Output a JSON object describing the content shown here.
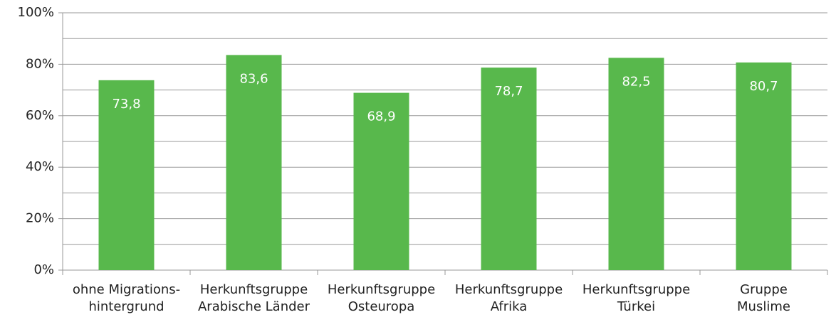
{
  "chart_data": {
    "type": "bar",
    "categories": [
      "ohne Migrations-\nhintergrund",
      "Herkunftsgruppe\nArabische Länder",
      "Herkunftsgruppe\nOsteuropa",
      "Herkunftsgruppe\nAfrika",
      "Herkunftsgruppe\nTürkei",
      "Gruppe\nMuslime"
    ],
    "values": [
      73.8,
      83.6,
      68.9,
      78.7,
      82.5,
      80.7
    ],
    "value_labels": [
      "73,8",
      "83,6",
      "68,9",
      "78,7",
      "82,5",
      "80,7"
    ],
    "color": "#58b84c",
    "ylim": [
      0,
      100
    ],
    "yticks": [
      {
        "value": 0,
        "label": "0%"
      },
      {
        "value": 20,
        "label": "20%"
      },
      {
        "value": 40,
        "label": "40%"
      },
      {
        "value": 60,
        "label": "60%"
      },
      {
        "value": 80,
        "label": "80%"
      },
      {
        "value": 100,
        "label": "100%"
      }
    ],
    "minor_yticks": [
      10,
      30,
      50,
      70,
      90
    ],
    "grid": true
  }
}
